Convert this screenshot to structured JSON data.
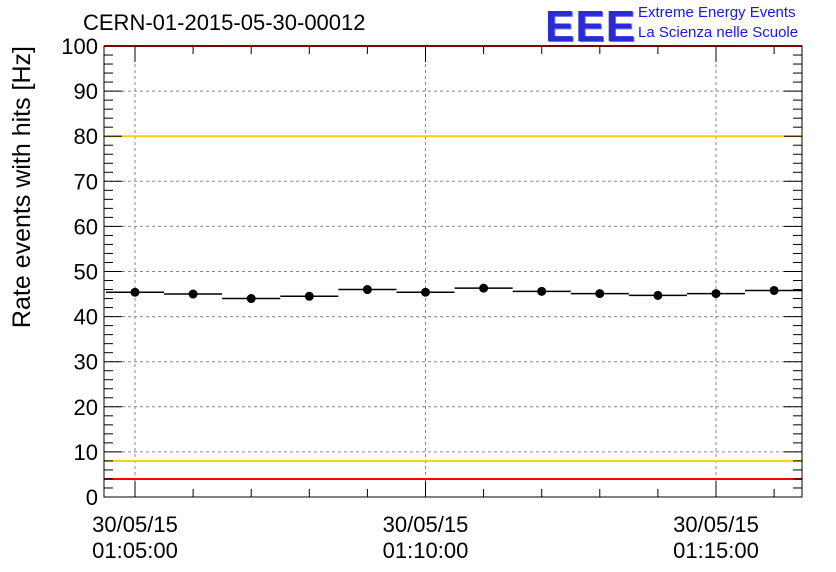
{
  "header": {
    "title": "CERN-01-2015-05-30-00012",
    "logo_text": "EEE",
    "logo_line1": "Extreme Energy Events",
    "logo_line2": "La Scienza nelle Scuole"
  },
  "colors": {
    "red_line": "#ff0000",
    "yellow_line": "#ffcc00",
    "logo_blue": "#2b2bd6",
    "grid": "#888888"
  },
  "chart_data": {
    "type": "scatter",
    "title": "CERN-01-2015-05-30-00012",
    "xlabel": "",
    "ylabel": "Rate events with hits [Hz]",
    "ylim": [
      0,
      100
    ],
    "xlim_seconds_note": "",
    "y_ticks": [
      0,
      10,
      20,
      30,
      40,
      50,
      60,
      70,
      80,
      90,
      100
    ],
    "x_tick_labels": [
      {
        "time": "01:05:00",
        "date": "30/05/15",
        "line1": "30/05/15",
        "line2": "01:05:00"
      },
      {
        "time": "01:10:00",
        "date": "30/05/15",
        "line1": "30/05/15",
        "line2": "01:10:00"
      },
      {
        "time": "01:15:00",
        "date": "30/05/15",
        "line1": "30/05/15",
        "line2": "01:15:00"
      }
    ],
    "x_range": [
      "01:04:00",
      "01:16:30"
    ],
    "reference_lines": [
      {
        "y": 100,
        "color": "red"
      },
      {
        "y": 80,
        "color": "yellow"
      },
      {
        "y": 8,
        "color": "yellow"
      },
      {
        "y": 4,
        "color": "red"
      }
    ],
    "series": [
      {
        "points": [
          {
            "x": "01:05:00",
            "y": 45.4
          },
          {
            "x": "01:06:00",
            "y": 45.0
          },
          {
            "x": "01:07:00",
            "y": 44.0
          },
          {
            "x": "01:08:00",
            "y": 44.5
          },
          {
            "x": "01:09:00",
            "y": 46.0
          },
          {
            "x": "01:10:00",
            "y": 45.4
          },
          {
            "x": "01:11:00",
            "y": 46.3
          },
          {
            "x": "01:12:00",
            "y": 45.6
          },
          {
            "x": "01:13:00",
            "y": 45.1
          },
          {
            "x": "01:14:00",
            "y": 44.7
          },
          {
            "x": "01:15:00",
            "y": 45.1
          },
          {
            "x": "01:16:00",
            "y": 45.8
          }
        ],
        "bin_width_seconds": 60
      }
    ],
    "grid": true,
    "legend": "none"
  }
}
